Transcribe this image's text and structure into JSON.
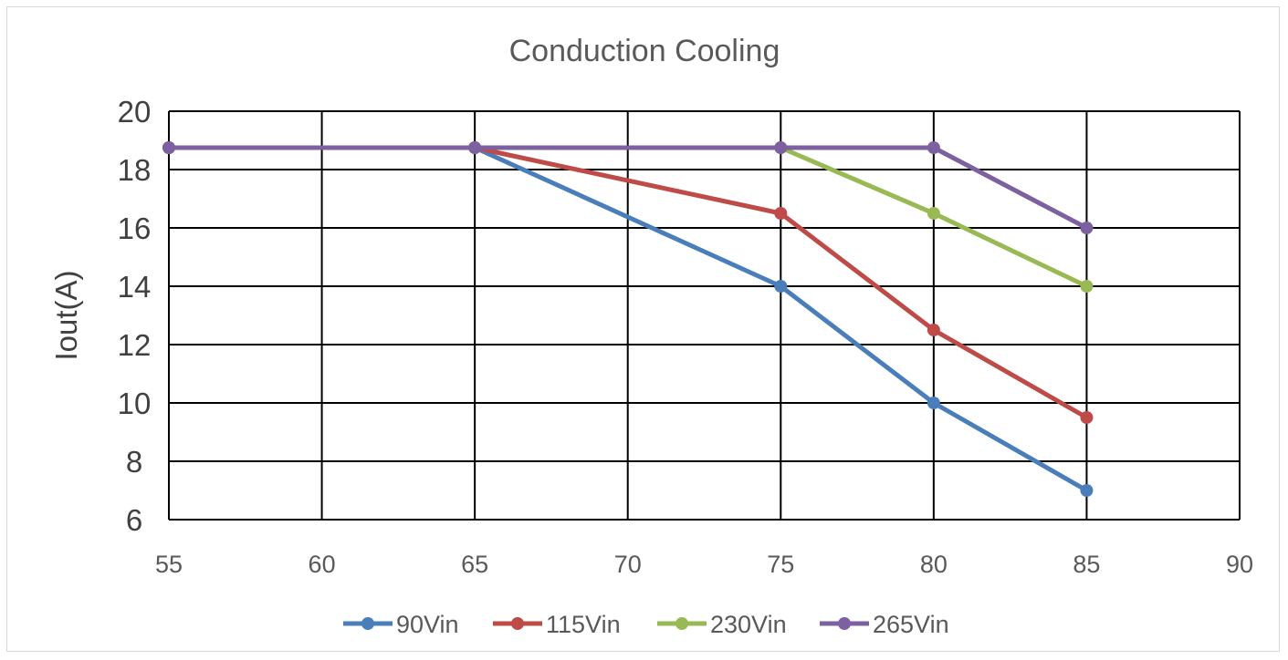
{
  "chart_data": {
    "type": "line",
    "title": "Conduction Cooling",
    "xlabel": "",
    "ylabel": "Iout(A)",
    "xlim": [
      55,
      90
    ],
    "ylim": [
      6,
      20
    ],
    "x_ticks": [
      55,
      60,
      65,
      70,
      75,
      80,
      85,
      90
    ],
    "y_ticks": [
      6,
      8,
      10,
      12,
      14,
      16,
      18,
      20
    ],
    "grid": true,
    "legend_position": "bottom",
    "series": [
      {
        "name": "90Vin",
        "color": "#4a7ebb",
        "x": [
          55,
          65,
          75,
          80,
          85
        ],
        "y": [
          18.75,
          18.75,
          14,
          10,
          7
        ]
      },
      {
        "name": "115Vin",
        "color": "#be4b48",
        "x": [
          55,
          65,
          75,
          80,
          85
        ],
        "y": [
          18.75,
          18.75,
          16.5,
          12.5,
          9.5
        ]
      },
      {
        "name": "230Vin",
        "color": "#98b954",
        "x": [
          55,
          65,
          75,
          80,
          85
        ],
        "y": [
          18.75,
          18.75,
          18.75,
          16.5,
          14
        ]
      },
      {
        "name": "265Vin",
        "color": "#7d60a0",
        "x": [
          55,
          65,
          75,
          80,
          85
        ],
        "y": [
          18.75,
          18.75,
          18.75,
          18.75,
          16
        ]
      }
    ]
  }
}
